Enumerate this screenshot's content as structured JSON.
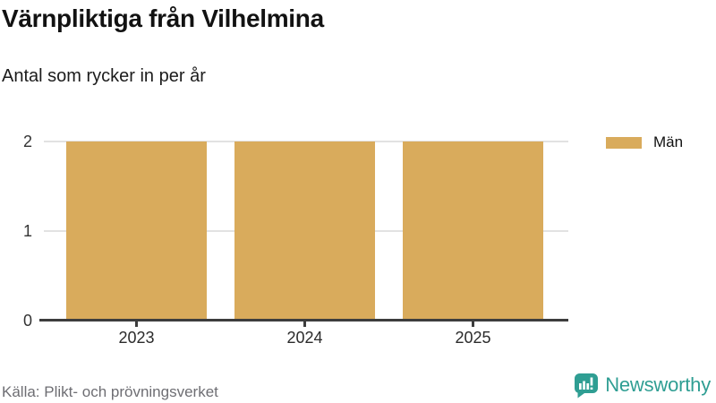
{
  "header": {
    "title": "Värnpliktiga från Vilhelmina",
    "subtitle": "Antal som rycker in per år"
  },
  "legend": {
    "items": [
      {
        "label": "Män",
        "color": "#d9ab5c"
      }
    ]
  },
  "chart_data": {
    "type": "bar",
    "categories": [
      "2023",
      "2024",
      "2025"
    ],
    "series": [
      {
        "name": "Män",
        "values": [
          2,
          2,
          2
        ]
      }
    ],
    "title": "Värnpliktiga från Vilhelmina",
    "subtitle": "Antal som rycker in per år",
    "xlabel": "",
    "ylabel": "",
    "ylim": [
      0,
      2
    ],
    "yticks": [
      0,
      1,
      2
    ],
    "grid": true,
    "legend_position": "top-right",
    "bar_color": "#d9ab5c"
  },
  "footer": {
    "source": "Källa: Plikt- och prövningsverket",
    "brand": "Newsworthy",
    "brand_color": "#2f9e93"
  },
  "colors": {
    "bar": "#d9ab5c",
    "axis": "#3d3d3d",
    "gridline": "#e2e2e2",
    "brand_teal": "#2f9e93"
  }
}
